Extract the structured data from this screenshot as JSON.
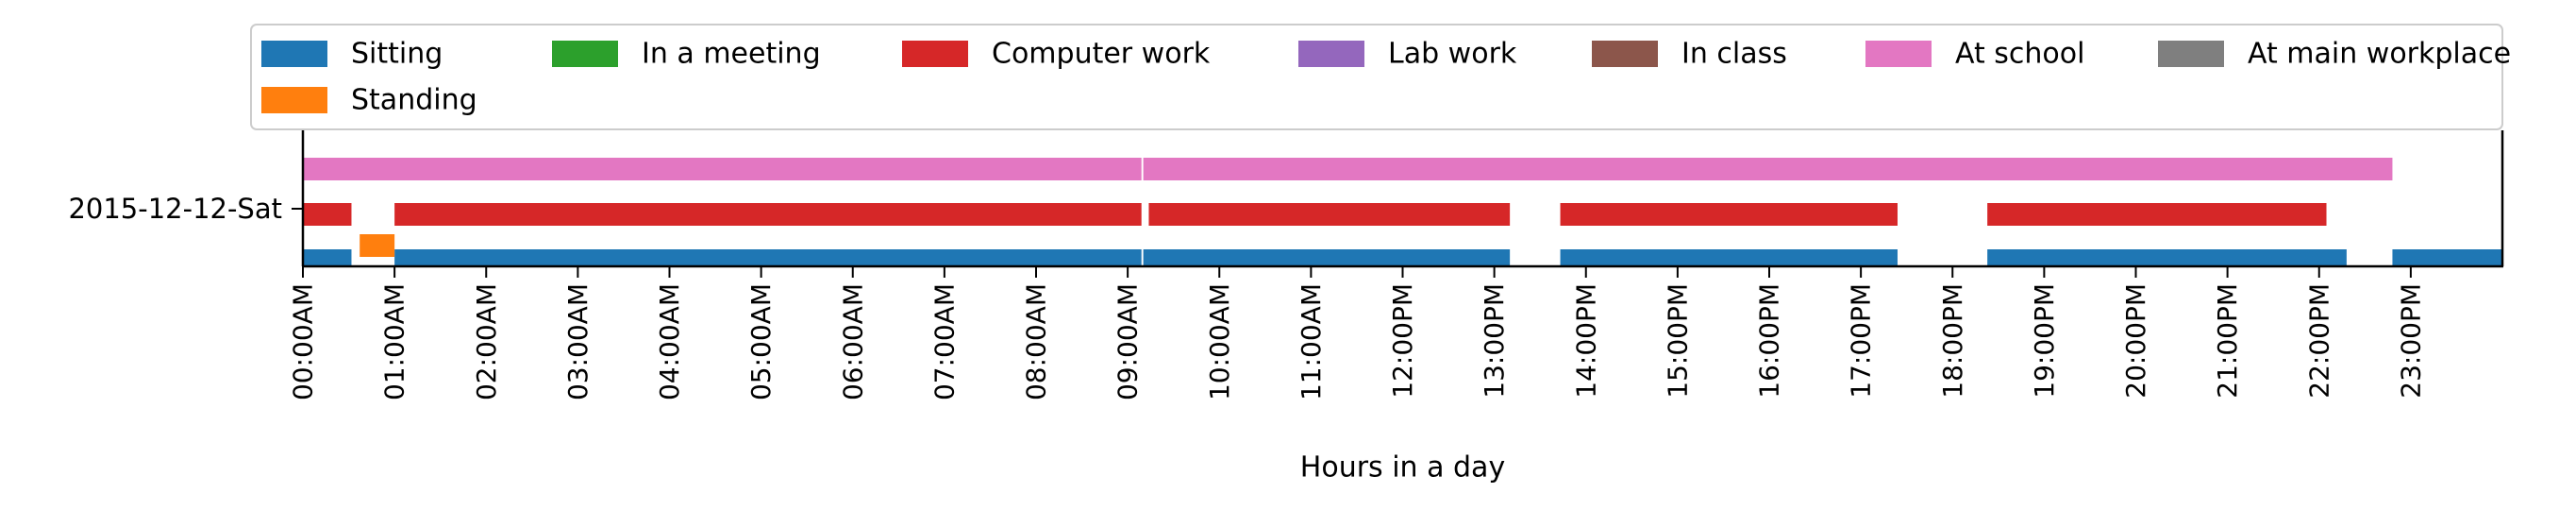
{
  "chart_data": {
    "type": "timeline",
    "xlabel": "Hours in a day",
    "ylabel": "",
    "x_unit": "hours",
    "xlim": [
      0,
      24
    ],
    "xticks": [
      {
        "value": 0,
        "label": "00:00AM"
      },
      {
        "value": 1,
        "label": "01:00AM"
      },
      {
        "value": 2,
        "label": "02:00AM"
      },
      {
        "value": 3,
        "label": "03:00AM"
      },
      {
        "value": 4,
        "label": "04:00AM"
      },
      {
        "value": 5,
        "label": "05:00AM"
      },
      {
        "value": 6,
        "label": "06:00AM"
      },
      {
        "value": 7,
        "label": "07:00AM"
      },
      {
        "value": 8,
        "label": "08:00AM"
      },
      {
        "value": 9,
        "label": "09:00AM"
      },
      {
        "value": 10,
        "label": "10:00AM"
      },
      {
        "value": 11,
        "label": "11:00AM"
      },
      {
        "value": 12,
        "label": "12:00PM"
      },
      {
        "value": 13,
        "label": "13:00PM"
      },
      {
        "value": 14,
        "label": "14:00PM"
      },
      {
        "value": 15,
        "label": "15:00PM"
      },
      {
        "value": 16,
        "label": "16:00PM"
      },
      {
        "value": 17,
        "label": "17:00PM"
      },
      {
        "value": 18,
        "label": "18:00PM"
      },
      {
        "value": 19,
        "label": "19:00PM"
      },
      {
        "value": 20,
        "label": "20:00PM"
      },
      {
        "value": 21,
        "label": "21:00PM"
      },
      {
        "value": 22,
        "label": "22:00PM"
      },
      {
        "value": 23,
        "label": "23:00PM"
      }
    ],
    "ytick_label": "2015-12-12-Sat",
    "legend_position": "top",
    "legend": [
      {
        "name": "Sitting",
        "color": "#1f77b4"
      },
      {
        "name": "Standing",
        "color": "#ff7f0e"
      },
      {
        "name": "In a meeting",
        "color": "#2ca02c"
      },
      {
        "name": "Computer work",
        "color": "#d62728"
      },
      {
        "name": "Lab work",
        "color": "#9467bd"
      },
      {
        "name": "In class",
        "color": "#8c564b"
      },
      {
        "name": "At school",
        "color": "#e377c2"
      },
      {
        "name": "At main workplace",
        "color": "#7f7f7f"
      }
    ],
    "series": [
      {
        "name": "Sitting",
        "color": "#1f77b4",
        "intervals": [
          [
            0,
            0.53
          ],
          [
            1.0,
            9.15
          ],
          [
            9.17,
            13.17
          ],
          [
            13.72,
            17.4
          ],
          [
            18.38,
            22.3
          ],
          [
            22.8,
            24
          ]
        ]
      },
      {
        "name": "Standing",
        "color": "#ff7f0e",
        "intervals": [
          [
            0.62,
            1.0
          ]
        ]
      },
      {
        "name": "Computer work",
        "color": "#d62728",
        "intervals": [
          [
            0,
            0.53
          ],
          [
            1.0,
            9.15
          ],
          [
            9.23,
            13.17
          ],
          [
            13.72,
            17.4
          ],
          [
            18.38,
            22.08
          ]
        ]
      },
      {
        "name": "At school",
        "color": "#e377c2",
        "intervals": [
          [
            0,
            9.15
          ],
          [
            9.17,
            22.8
          ]
        ]
      }
    ]
  }
}
